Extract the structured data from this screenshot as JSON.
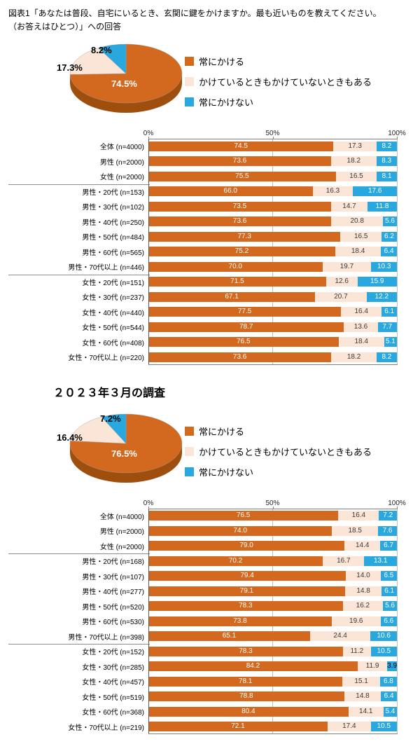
{
  "header": {
    "title_line1": "図表1「あなたは普段、自宅にいるとき、玄関に鍵をかけますか。最も近いものを教えてください。",
    "title_line2": "（お答えはひとつ）」への回答",
    "section2_title": "２０２３年３月の調査"
  },
  "legend": {
    "items": [
      {
        "label": "常にかける",
        "color": "#d2691e"
      },
      {
        "label": "かけているときもかけていないときもある",
        "color": "#fbe5d6"
      },
      {
        "label": "常にかけない",
        "color": "#29a8e0"
      }
    ]
  },
  "colors": {
    "always": "#d2691e",
    "sometimes": "#fbe5d6",
    "never": "#29a8e0",
    "pie_rim": "#9e4f0d",
    "seg_text": [
      "#ffffff",
      "#3a3a3a",
      "#ffffff"
    ]
  },
  "chart_data": [
    {
      "pie": {
        "type": "pie",
        "labels": [
          "常にかける",
          "かけているときもかけていないときもある",
          "常にかけない"
        ],
        "values": [
          74.5,
          17.3,
          8.2
        ],
        "display_labels": [
          "74.5%",
          "17.3%",
          "8.2%"
        ]
      },
      "bars": {
        "type": "bar",
        "stacked": true,
        "orientation": "horizontal",
        "x_ticks": [
          "0%",
          "50%",
          "100%"
        ],
        "x_range": [
          0,
          100
        ],
        "series_names": [
          "常にかける",
          "かけているときもかけていないときもある",
          "常にかけない"
        ],
        "group_starts": [
          3,
          9
        ],
        "categories": [
          "全体 (n=4000)",
          "男性 (n=2000)",
          "女性 (n=2000)",
          "男性・20代 (n=153)",
          "男性・30代 (n=102)",
          "男性・40代 (n=250)",
          "男性・50代 (n=484)",
          "男性・60代 (n=565)",
          "男性・70代以上 (n=446)",
          "女性・20代 (n=151)",
          "女性・30代 (n=237)",
          "女性・40代 (n=440)",
          "女性・50代 (n=544)",
          "女性・60代 (n=408)",
          "女性・70代以上 (n=220)"
        ],
        "rows": [
          [
            74.5,
            17.3,
            8.2
          ],
          [
            73.6,
            18.2,
            8.3
          ],
          [
            75.5,
            16.5,
            8.1
          ],
          [
            66.0,
            16.3,
            17.6
          ],
          [
            73.5,
            14.7,
            11.8
          ],
          [
            73.6,
            20.8,
            5.6
          ],
          [
            77.3,
            16.5,
            6.2
          ],
          [
            75.2,
            18.4,
            6.4
          ],
          [
            70.0,
            19.7,
            10.3
          ],
          [
            71.5,
            12.6,
            15.9
          ],
          [
            67.1,
            20.7,
            12.2
          ],
          [
            77.5,
            16.4,
            6.1
          ],
          [
            78.7,
            13.6,
            7.7
          ],
          [
            76.5,
            18.4,
            5.1
          ],
          [
            73.6,
            18.2,
            8.2
          ]
        ]
      }
    },
    {
      "pie": {
        "type": "pie",
        "labels": [
          "常にかける",
          "かけているときもかけていないときもある",
          "常にかけない"
        ],
        "values": [
          76.5,
          16.4,
          7.2
        ],
        "display_labels": [
          "76.5%",
          "16.4%",
          "7.2%"
        ]
      },
      "bars": {
        "type": "bar",
        "stacked": true,
        "orientation": "horizontal",
        "x_ticks": [
          "0%",
          "50%",
          "100%"
        ],
        "x_range": [
          0,
          100
        ],
        "series_names": [
          "常にかける",
          "かけているときもかけていないときもある",
          "常にかけない"
        ],
        "group_starts": [
          3,
          9
        ],
        "categories": [
          "全体 (n=4000)",
          "男性 (n=2000)",
          "女性 (n=2000)",
          "男性・20代 (n=168)",
          "男性・30代 (n=107)",
          "男性・40代 (n=277)",
          "男性・50代 (n=520)",
          "男性・60代 (n=530)",
          "男性・70代以上 (n=398)",
          "女性・20代 (n=152)",
          "女性・30代 (n=285)",
          "女性・40代 (n=457)",
          "女性・50代 (n=519)",
          "女性・60代 (n=368)",
          "女性・70代以上 (n=219)"
        ],
        "rows": [
          [
            76.5,
            16.4,
            7.2
          ],
          [
            74.0,
            18.5,
            7.6
          ],
          [
            79.0,
            14.4,
            6.7
          ],
          [
            70.2,
            16.7,
            13.1
          ],
          [
            79.4,
            14.0,
            6.5
          ],
          [
            79.1,
            14.8,
            6.1
          ],
          [
            78.3,
            16.2,
            5.6
          ],
          [
            73.8,
            19.6,
            6.6
          ],
          [
            65.1,
            24.4,
            10.6
          ],
          [
            78.3,
            11.2,
            10.5
          ],
          [
            84.2,
            11.9,
            3.9
          ],
          [
            78.1,
            15.1,
            6.8
          ],
          [
            78.8,
            14.8,
            6.4
          ],
          [
            80.4,
            14.1,
            5.4
          ],
          [
            72.1,
            17.4,
            10.5
          ]
        ]
      }
    }
  ]
}
